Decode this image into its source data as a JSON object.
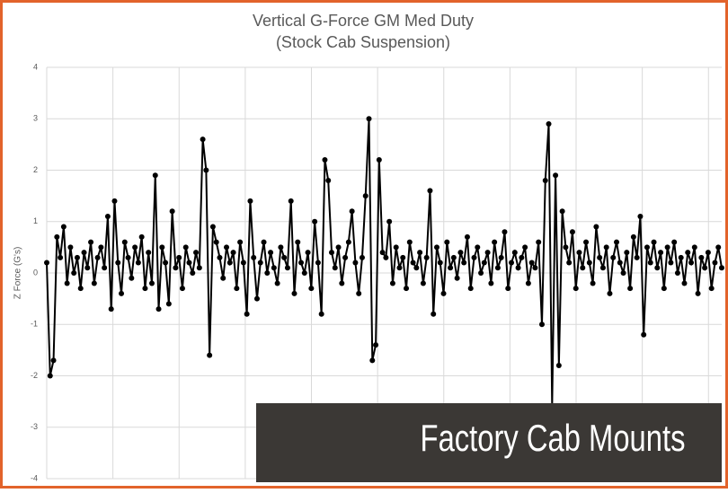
{
  "chart_data": {
    "type": "line",
    "title": "Vertical G-Force GM Med Duty",
    "subtitle": "(Stock Cab Suspension)",
    "y_label": "Z Force (G's)",
    "color": "#000000",
    "markers": true,
    "grid": true,
    "ylim": [
      -4,
      4
    ],
    "yticks": [
      -4,
      -3,
      -2,
      -1,
      0,
      1,
      2,
      3,
      4
    ],
    "values": [
      0.2,
      -2.0,
      -1.7,
      0.7,
      0.3,
      0.9,
      -0.2,
      0.5,
      0.0,
      0.3,
      -0.3,
      0.4,
      0.1,
      0.6,
      -0.2,
      0.3,
      0.5,
      0.1,
      1.1,
      -0.7,
      1.4,
      0.2,
      -0.4,
      0.6,
      0.3,
      -0.1,
      0.5,
      0.2,
      0.7,
      -0.3,
      0.4,
      -0.2,
      1.9,
      -0.7,
      0.5,
      0.2,
      -0.6,
      1.2,
      0.1,
      0.3,
      -0.3,
      0.5,
      0.2,
      0.0,
      0.4,
      0.1,
      2.6,
      2.0,
      -1.6,
      0.9,
      0.6,
      0.3,
      -0.1,
      0.5,
      0.2,
      0.4,
      -0.3,
      0.6,
      0.2,
      -0.8,
      1.4,
      0.3,
      -0.5,
      0.2,
      0.6,
      0.0,
      0.4,
      0.1,
      -0.2,
      0.5,
      0.3,
      0.1,
      1.4,
      -0.4,
      0.6,
      0.2,
      0.0,
      0.4,
      -0.3,
      1.0,
      0.2,
      -0.8,
      2.2,
      1.8,
      0.4,
      0.1,
      0.5,
      -0.2,
      0.3,
      0.6,
      1.2,
      0.2,
      -0.4,
      0.3,
      1.5,
      3.0,
      -1.7,
      -1.4,
      2.2,
      0.4,
      0.3,
      1.0,
      -0.2,
      0.5,
      0.1,
      0.3,
      -0.3,
      0.6,
      0.2,
      0.1,
      0.4,
      -0.2,
      0.3,
      1.6,
      -0.8,
      0.5,
      0.2,
      -0.4,
      0.6,
      0.1,
      0.3,
      -0.1,
      0.4,
      0.2,
      0.7,
      -0.3,
      0.3,
      0.5,
      0.0,
      0.2,
      0.4,
      -0.2,
      0.6,
      0.1,
      0.3,
      0.8,
      -0.3,
      0.2,
      0.4,
      0.1,
      0.3,
      0.5,
      -0.2,
      0.2,
      0.1,
      0.6,
      -1.0,
      1.8,
      2.9,
      -2.6,
      1.9,
      -1.8,
      1.2,
      0.5,
      0.2,
      0.8,
      -0.3,
      0.4,
      0.1,
      0.6,
      0.2,
      -0.2,
      0.9,
      0.3,
      0.1,
      0.5,
      -0.4,
      0.3,
      0.6,
      0.2,
      0.0,
      0.4,
      -0.3,
      0.7,
      0.3,
      1.1,
      -1.2,
      0.5,
      0.2,
      0.6,
      0.1,
      0.4,
      -0.3,
      0.5,
      0.2,
      0.6,
      0.0,
      0.3,
      -0.2,
      0.4,
      0.2,
      0.5,
      -0.4,
      0.3,
      0.1,
      0.4,
      -0.3,
      0.2,
      0.5,
      0.1
    ]
  },
  "banner": "Factory Cab Mounts"
}
